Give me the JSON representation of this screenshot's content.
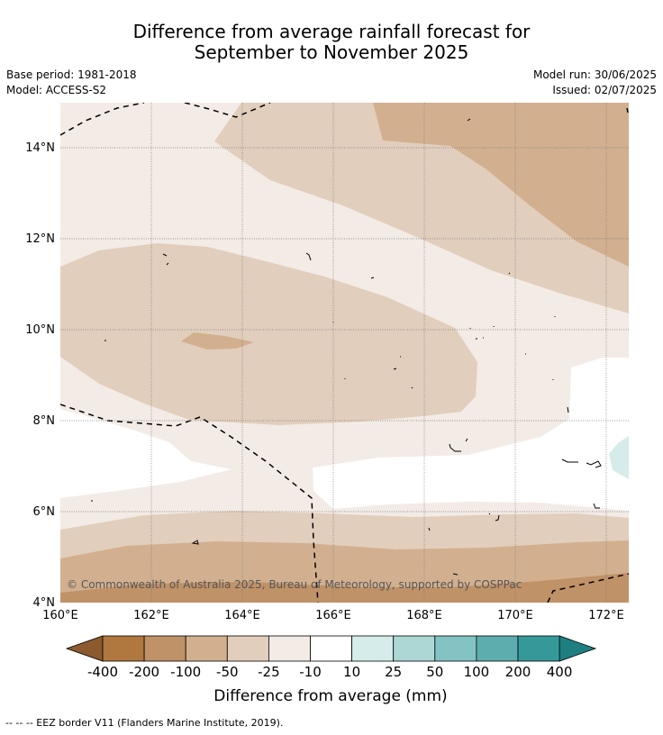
{
  "title": {
    "line1": "Difference from average rainfall forecast for",
    "line2": "September to November 2025"
  },
  "meta": {
    "base_period": "Base period: 1981-2018",
    "model": "Model: ACCESS-S2",
    "model_run": "Model run: 30/06/2025",
    "issued": "Issued: 02/07/2025"
  },
  "axes": {
    "x_ticks": [
      "160°E",
      "162°E",
      "164°E",
      "166°E",
      "168°E",
      "170°E",
      "172°E"
    ],
    "y_ticks": [
      "14°N",
      "12°N",
      "10°N",
      "8°N",
      "6°N",
      "4°N"
    ]
  },
  "copyright": "© Commonwealth of Australia 2025, Bureau of Meteorology, supported by COSPPac",
  "colorbar": {
    "labels": [
      "-400",
      "-200",
      "-100",
      "-50",
      "-25",
      "-10",
      "10",
      "25",
      "50",
      "100",
      "200",
      "400"
    ],
    "colors": [
      "#8c5a2e",
      "#b0773e",
      "#c09268",
      "#d2b08f",
      "#e2cebd",
      "#f3ebe5",
      "#ffffff",
      "#d5ecea",
      "#acd7d5",
      "#83c3c3",
      "#5dadae",
      "#35999a",
      "#1f7f80"
    ],
    "title": "Difference from average (mm)"
  },
  "footnote": "-- -- -- EEZ border V11 (Flanders Marine Institute, 2019)."
}
